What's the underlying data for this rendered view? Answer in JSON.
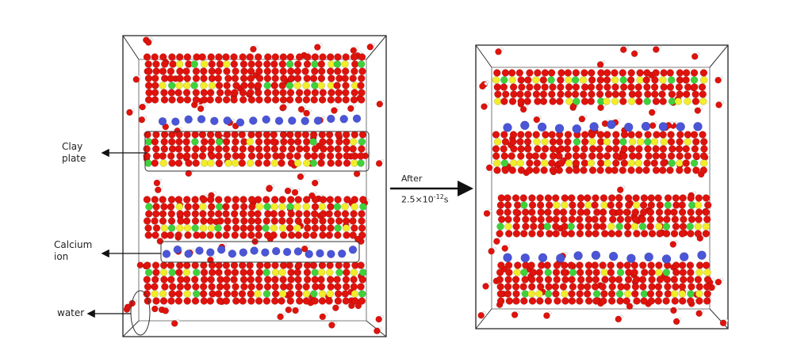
{
  "labels": {
    "clay_plate": [
      "Clay",
      "plate"
    ],
    "calcium_ion": [
      "Calcium",
      "ion"
    ],
    "water": "water",
    "after": "After",
    "time_base": "2.5×10",
    "time_exp": "-12",
    "time_unit": "s"
  },
  "colors": {
    "oxygen": "#e0120c",
    "silicon": "#f2ec2a",
    "aluminium": "#3fd13a",
    "calcium": "#4a55d8",
    "hydrogen": "#ffffff"
  }
}
